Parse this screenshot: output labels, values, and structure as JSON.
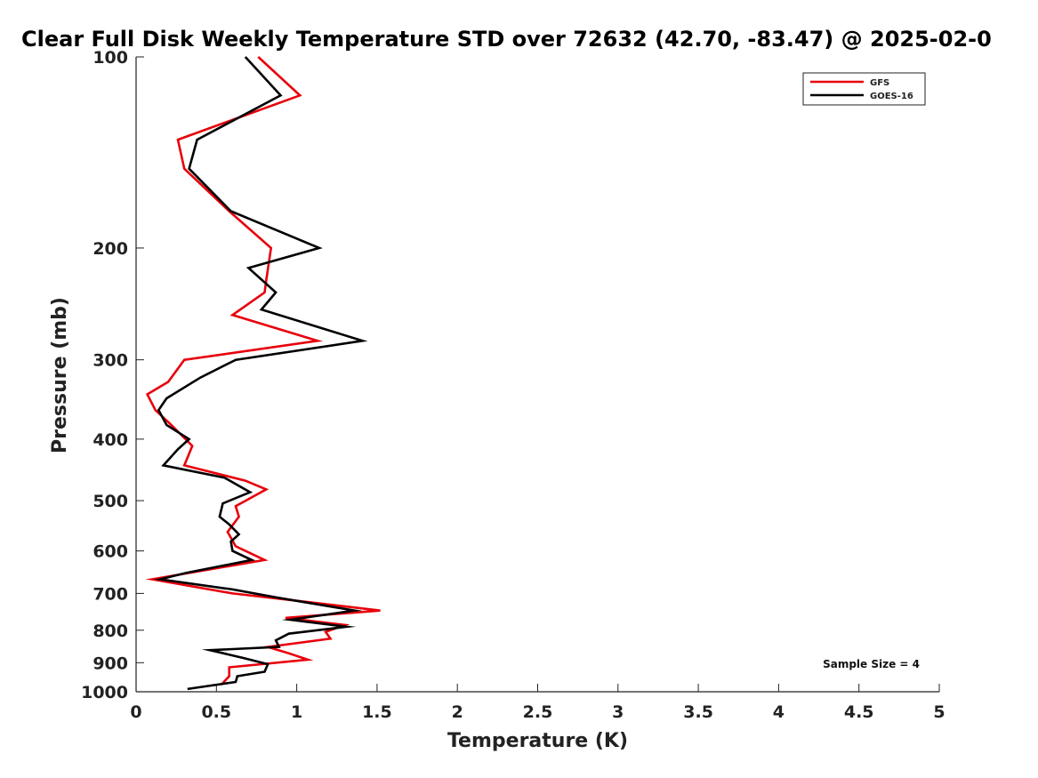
{
  "chart_data": {
    "type": "line",
    "title": "Clear Full Disk Weekly Temperature STD over 72632 (42.70, -83.47) @ 2025-02-0",
    "xlabel": "Temperature (K)",
    "ylabel": "Pressure (mb)",
    "xlim": [
      0,
      5
    ],
    "ylim": [
      1000,
      100
    ],
    "yscale": "log",
    "xticks": [
      "0",
      "0.5",
      "1",
      "1.5",
      "2",
      "2.5",
      "3",
      "3.5",
      "4",
      "4.5",
      "5"
    ],
    "yticks": [
      "100",
      "200",
      "300",
      "400",
      "500",
      "600",
      "700",
      "800",
      "900",
      "1000"
    ],
    "grid": false,
    "legend_position": "top-right",
    "series": [
      {
        "name": "GFS",
        "color": "#e8000b",
        "points": [
          [
            0.76,
            100
          ],
          [
            1.02,
            115
          ],
          [
            0.26,
            135
          ],
          [
            0.3,
            150
          ],
          [
            0.58,
            175
          ],
          [
            0.84,
            200
          ],
          [
            0.81,
            225
          ],
          [
            0.8,
            235
          ],
          [
            0.6,
            255
          ],
          [
            1.13,
            280
          ],
          [
            0.3,
            300
          ],
          [
            0.2,
            325
          ],
          [
            0.07,
            340
          ],
          [
            0.12,
            360
          ],
          [
            0.22,
            380
          ],
          [
            0.35,
            410
          ],
          [
            0.3,
            440
          ],
          [
            0.68,
            465
          ],
          [
            0.81,
            480
          ],
          [
            0.62,
            510
          ],
          [
            0.64,
            530
          ],
          [
            0.57,
            560
          ],
          [
            0.62,
            590
          ],
          [
            0.8,
            620
          ],
          [
            0.1,
            665
          ],
          [
            0.6,
            700
          ],
          [
            1.02,
            720
          ],
          [
            1.52,
            745
          ],
          [
            0.93,
            765
          ],
          [
            1.3,
            785
          ],
          [
            1.18,
            805
          ],
          [
            1.21,
            825
          ],
          [
            0.82,
            850
          ],
          [
            0.95,
            870
          ],
          [
            1.07,
            890
          ],
          [
            0.58,
            915
          ],
          [
            0.58,
            945
          ],
          [
            0.53,
            975
          ]
        ]
      },
      {
        "name": "GOES-16",
        "color": "#000000",
        "points": [
          [
            0.68,
            100
          ],
          [
            0.9,
            115
          ],
          [
            0.38,
            135
          ],
          [
            0.33,
            150
          ],
          [
            0.59,
            175
          ],
          [
            1.14,
            200
          ],
          [
            0.7,
            215
          ],
          [
            0.87,
            235
          ],
          [
            0.78,
            250
          ],
          [
            1.41,
            280
          ],
          [
            0.62,
            300
          ],
          [
            0.4,
            320
          ],
          [
            0.19,
            345
          ],
          [
            0.14,
            360
          ],
          [
            0.19,
            380
          ],
          [
            0.33,
            400
          ],
          [
            0.26,
            415
          ],
          [
            0.17,
            440
          ],
          [
            0.55,
            460
          ],
          [
            0.71,
            485
          ],
          [
            0.54,
            505
          ],
          [
            0.52,
            530
          ],
          [
            0.58,
            545
          ],
          [
            0.64,
            565
          ],
          [
            0.59,
            580
          ],
          [
            0.6,
            600
          ],
          [
            0.72,
            620
          ],
          [
            0.31,
            650
          ],
          [
            0.15,
            665
          ],
          [
            0.6,
            690
          ],
          [
            0.87,
            710
          ],
          [
            1.36,
            745
          ],
          [
            0.96,
            770
          ],
          [
            1.31,
            790
          ],
          [
            0.95,
            810
          ],
          [
            0.87,
            830
          ],
          [
            0.89,
            850
          ],
          [
            0.46,
            860
          ],
          [
            0.67,
            885
          ],
          [
            0.82,
            905
          ],
          [
            0.8,
            930
          ],
          [
            0.63,
            945
          ],
          [
            0.62,
            965
          ],
          [
            0.32,
            990
          ]
        ]
      }
    ],
    "annotation": "Sample Size = 4"
  }
}
